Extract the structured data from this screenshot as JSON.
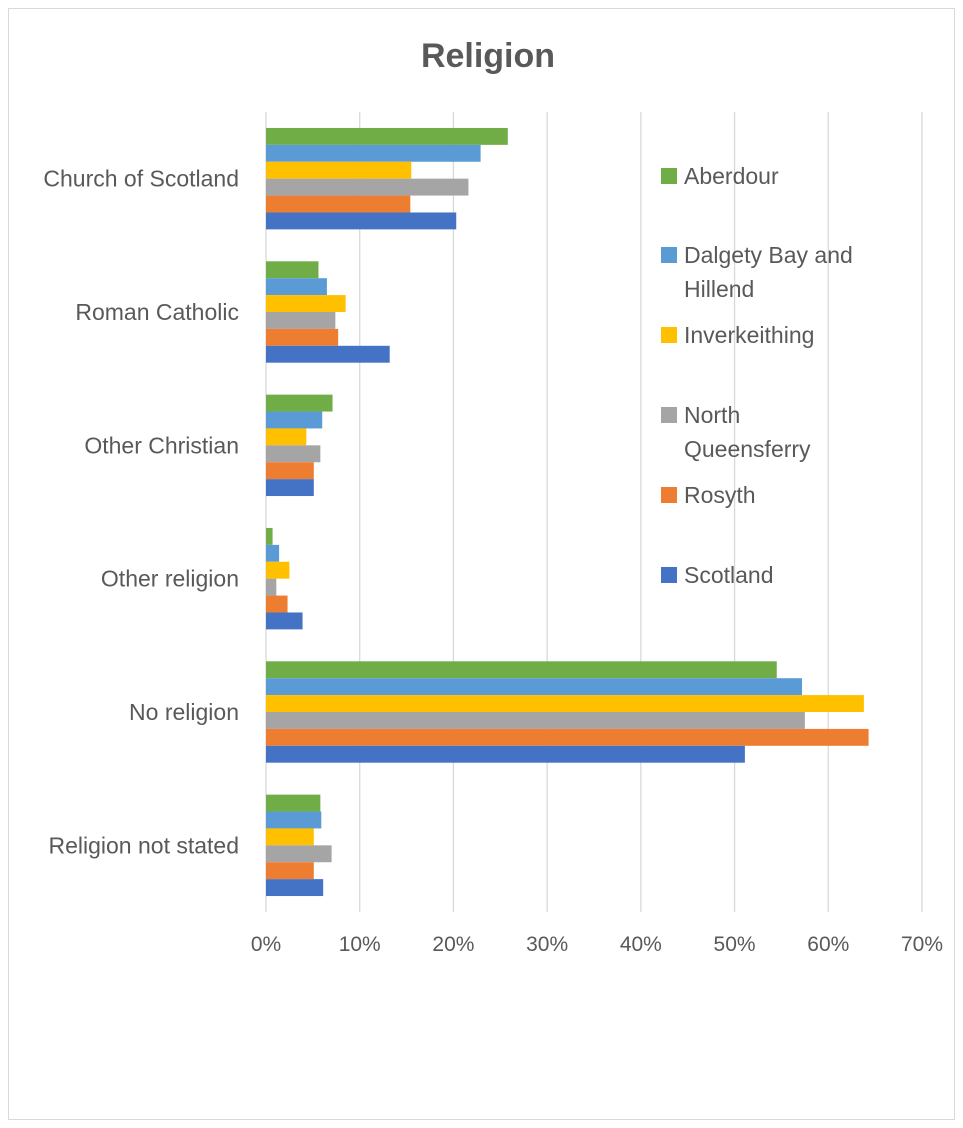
{
  "chart_data": {
    "type": "bar",
    "orientation": "horizontal",
    "title": "Religion",
    "xlabel": "",
    "ylabel": "",
    "xlim": [
      0,
      0.7
    ],
    "x_ticks": [
      "0%",
      "10%",
      "20%",
      "30%",
      "40%",
      "50%",
      "60%",
      "70%"
    ],
    "grid": true,
    "legend_position": "right",
    "categories": [
      "Church of Scotland",
      "Roman Catholic",
      "Other Christian",
      "Other religion",
      "No religion",
      "Religion not stated"
    ],
    "series": [
      {
        "name": "Aberdour",
        "color": "#70ad47",
        "values": [
          0.258,
          0.056,
          0.071,
          0.007,
          0.545,
          0.058
        ]
      },
      {
        "name": "Dalgety Bay and Hillend",
        "color": "#5b9bd5",
        "values": [
          0.229,
          0.065,
          0.06,
          0.014,
          0.572,
          0.059
        ]
      },
      {
        "name": "Inverkeithing",
        "color": "#ffc000",
        "values": [
          0.155,
          0.085,
          0.043,
          0.025,
          0.638,
          0.051
        ]
      },
      {
        "name": "North Queensferry",
        "color": "#a5a5a5",
        "values": [
          0.216,
          0.074,
          0.058,
          0.011,
          0.575,
          0.07
        ]
      },
      {
        "name": "Rosyth",
        "color": "#ed7d31",
        "values": [
          0.154,
          0.077,
          0.051,
          0.023,
          0.643,
          0.051
        ]
      },
      {
        "name": "Scotland",
        "color": "#4472c4",
        "values": [
          0.203,
          0.132,
          0.051,
          0.039,
          0.511,
          0.061
        ]
      }
    ],
    "legend_lines": [
      [
        "Aberdour"
      ],
      [
        "Dalgety Bay and",
        "Hillend"
      ],
      [
        "Inverkeithing"
      ],
      [
        "North",
        "Queensferry"
      ],
      [
        "Rosyth"
      ],
      [
        "Scotland"
      ]
    ]
  }
}
